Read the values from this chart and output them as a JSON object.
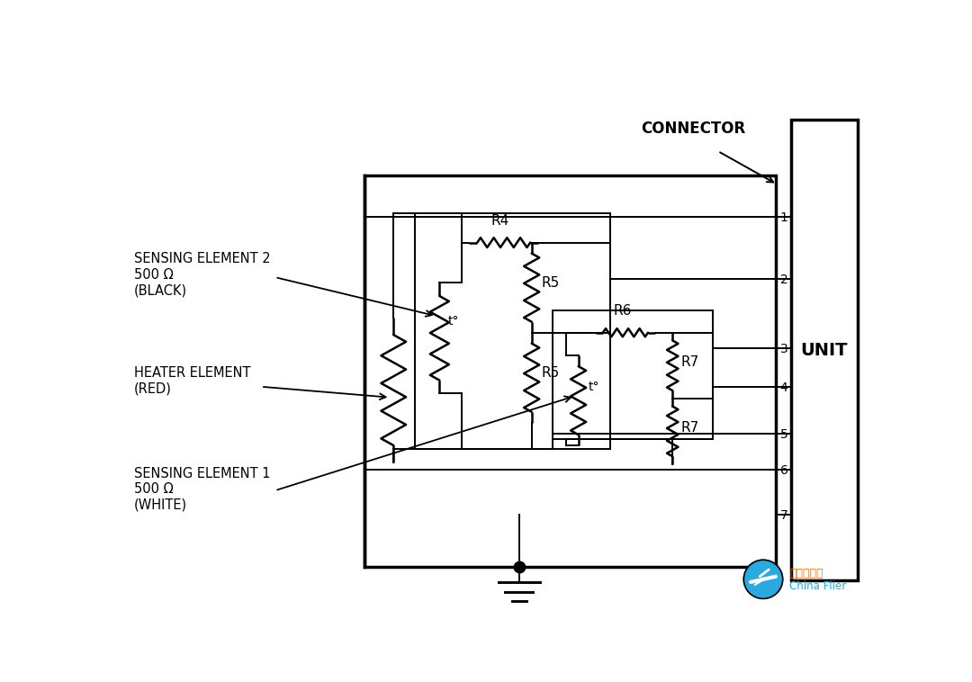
{
  "bg_color": "#ffffff",
  "line_color": "#000000",
  "connector_label": "CONNECTOR",
  "unit_label": "UNIT",
  "sensing2_line1": "SENSING ELEMENT 2",
  "sensing2_line2": "500 Ω",
  "sensing2_line3": "(BLACK)",
  "heater_line1": "HEATER ELEMENT",
  "heater_line2": "(RED)",
  "sensing1_line1": "SENSING ELEMENT 1",
  "sensing1_line2": "500 Ω",
  "sensing1_line3": "(WHITE)",
  "logo_text1": "飞行者联盟",
  "logo_text2": "China Flier",
  "logo_color1": "#e87722",
  "logo_color2": "#29aae1",
  "logo_circle_color": "#29aae1"
}
